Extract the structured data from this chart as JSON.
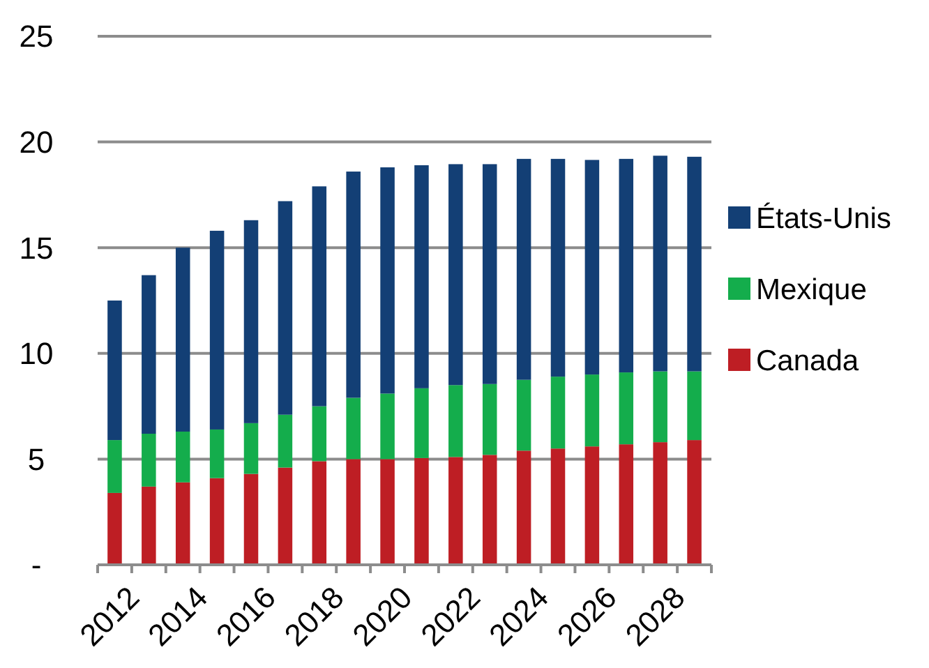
{
  "chart_data": {
    "type": "bar",
    "stacked": true,
    "categories": [
      "2012",
      null,
      "2014",
      null,
      "2016",
      null,
      "2018",
      null,
      "2020",
      null,
      "2022",
      null,
      "2024",
      null,
      "2026",
      null,
      "2028",
      null
    ],
    "series": [
      {
        "name": "Canada",
        "color": "#be1e24",
        "values": [
          3.4,
          3.7,
          3.9,
          4.1,
          4.3,
          4.6,
          4.9,
          5.0,
          5.0,
          5.05,
          5.1,
          5.2,
          5.4,
          5.5,
          5.6,
          5.7,
          5.8,
          5.9
        ]
      },
      {
        "name": "Mexique",
        "color": "#14ad4c",
        "values": [
          2.5,
          2.5,
          2.4,
          2.3,
          2.4,
          2.5,
          2.6,
          2.9,
          3.1,
          3.3,
          3.4,
          3.35,
          3.35,
          3.4,
          3.4,
          3.4,
          3.35,
          3.25
        ]
      },
      {
        "name": "États-Unis",
        "color": "#133f75",
        "values": [
          6.6,
          7.5,
          8.7,
          9.4,
          9.6,
          10.1,
          10.4,
          10.7,
          10.7,
          10.55,
          10.45,
          10.4,
          10.45,
          10.3,
          10.15,
          10.1,
          10.2,
          10.15
        ]
      }
    ],
    "ylim": [
      0,
      25
    ],
    "yticks": [
      {
        "value": 0,
        "label": "-"
      },
      5,
      10,
      15,
      20,
      25
    ],
    "grid": "y",
    "legend": "right"
  }
}
